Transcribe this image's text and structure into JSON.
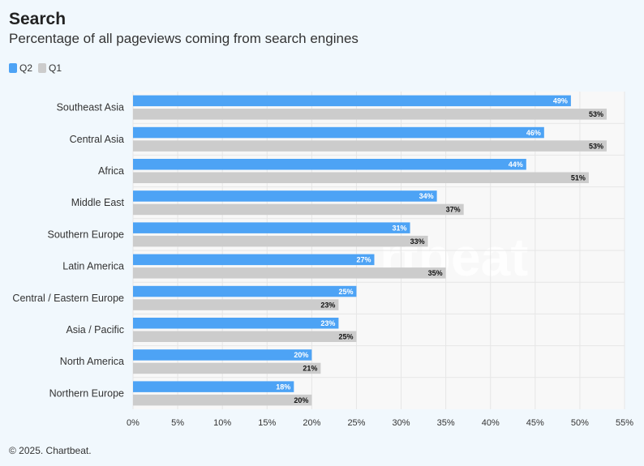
{
  "header": {
    "title": "Search",
    "subtitle": "Percentage of all pageviews coming from search engines"
  },
  "legend": [
    {
      "label": "Q2",
      "color": "#4da3f5"
    },
    {
      "label": "Q1",
      "color": "#cccccc"
    }
  ],
  "footer": "© 2025. Chartbeat.",
  "chart_data": {
    "type": "bar",
    "orientation": "horizontal",
    "title": "Search",
    "subtitle": "Percentage of all pageviews coming from search engines",
    "categories": [
      "Southeast Asia",
      "Central Asia",
      "Africa",
      "Middle East",
      "Southern Europe",
      "Latin America",
      "Central / Eastern Europe",
      "Asia / Pacific",
      "North America",
      "Northern Europe"
    ],
    "series": [
      {
        "name": "Q2",
        "color": "#4da3f5",
        "values": [
          49,
          46,
          44,
          34,
          31,
          27,
          25,
          23,
          20,
          18
        ]
      },
      {
        "name": "Q1",
        "color": "#cccccc",
        "values": [
          53,
          53,
          51,
          37,
          33,
          35,
          23,
          25,
          21,
          20
        ]
      }
    ],
    "value_suffix": "%",
    "xlim": [
      0,
      55
    ],
    "xticks": [
      0,
      5,
      10,
      15,
      20,
      25,
      30,
      35,
      40,
      45,
      50,
      55
    ],
    "xtick_labels": [
      "0%",
      "5%",
      "10%",
      "15%",
      "20%",
      "25%",
      "30%",
      "35%",
      "40%",
      "45%",
      "50%",
      "55%"
    ],
    "grid": true,
    "legend_position": "top-left"
  }
}
